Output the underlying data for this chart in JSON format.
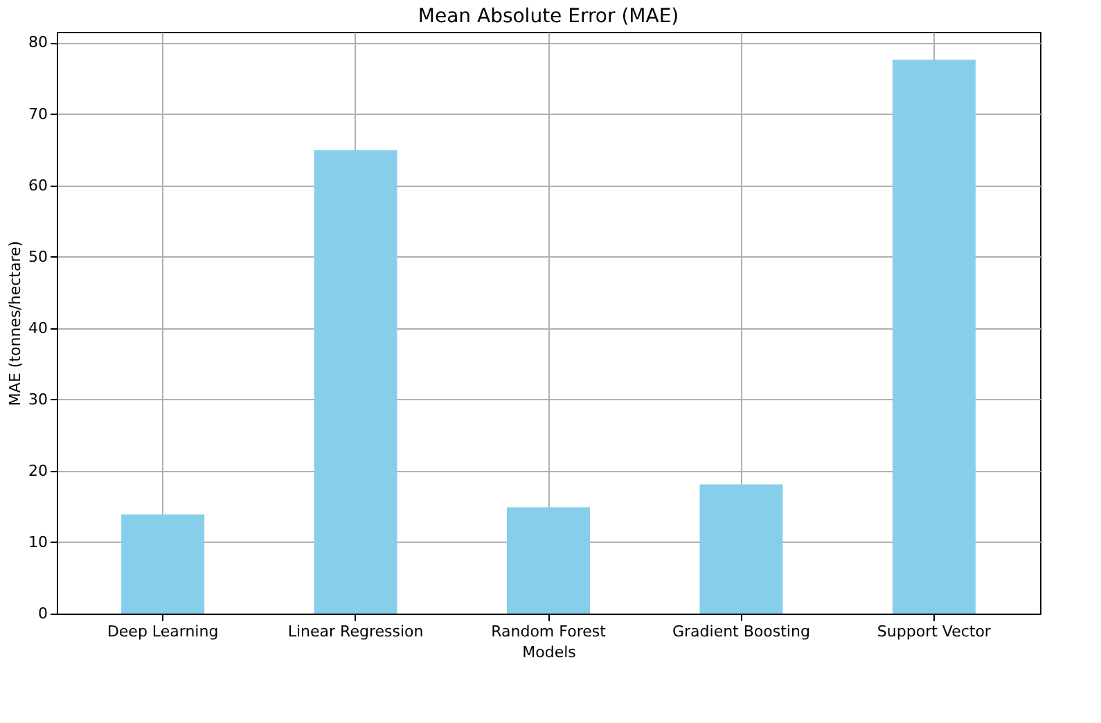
{
  "chart_data": {
    "type": "bar",
    "title": "Mean Absolute Error (MAE)",
    "xlabel": "Models",
    "ylabel": "MAE (tonnes/hectare)",
    "categories": [
      "Deep Learning",
      "Linear Regression",
      "Random Forest",
      "Gradient Boosting",
      "Support Vector"
    ],
    "values": [
      13.9,
      64.9,
      14.9,
      18.1,
      77.6
    ],
    "color": "#87ceeb",
    "ylim": [
      0,
      81.5
    ],
    "yticks": [
      0,
      10,
      20,
      30,
      40,
      50,
      60,
      70,
      80
    ],
    "grid": true
  }
}
